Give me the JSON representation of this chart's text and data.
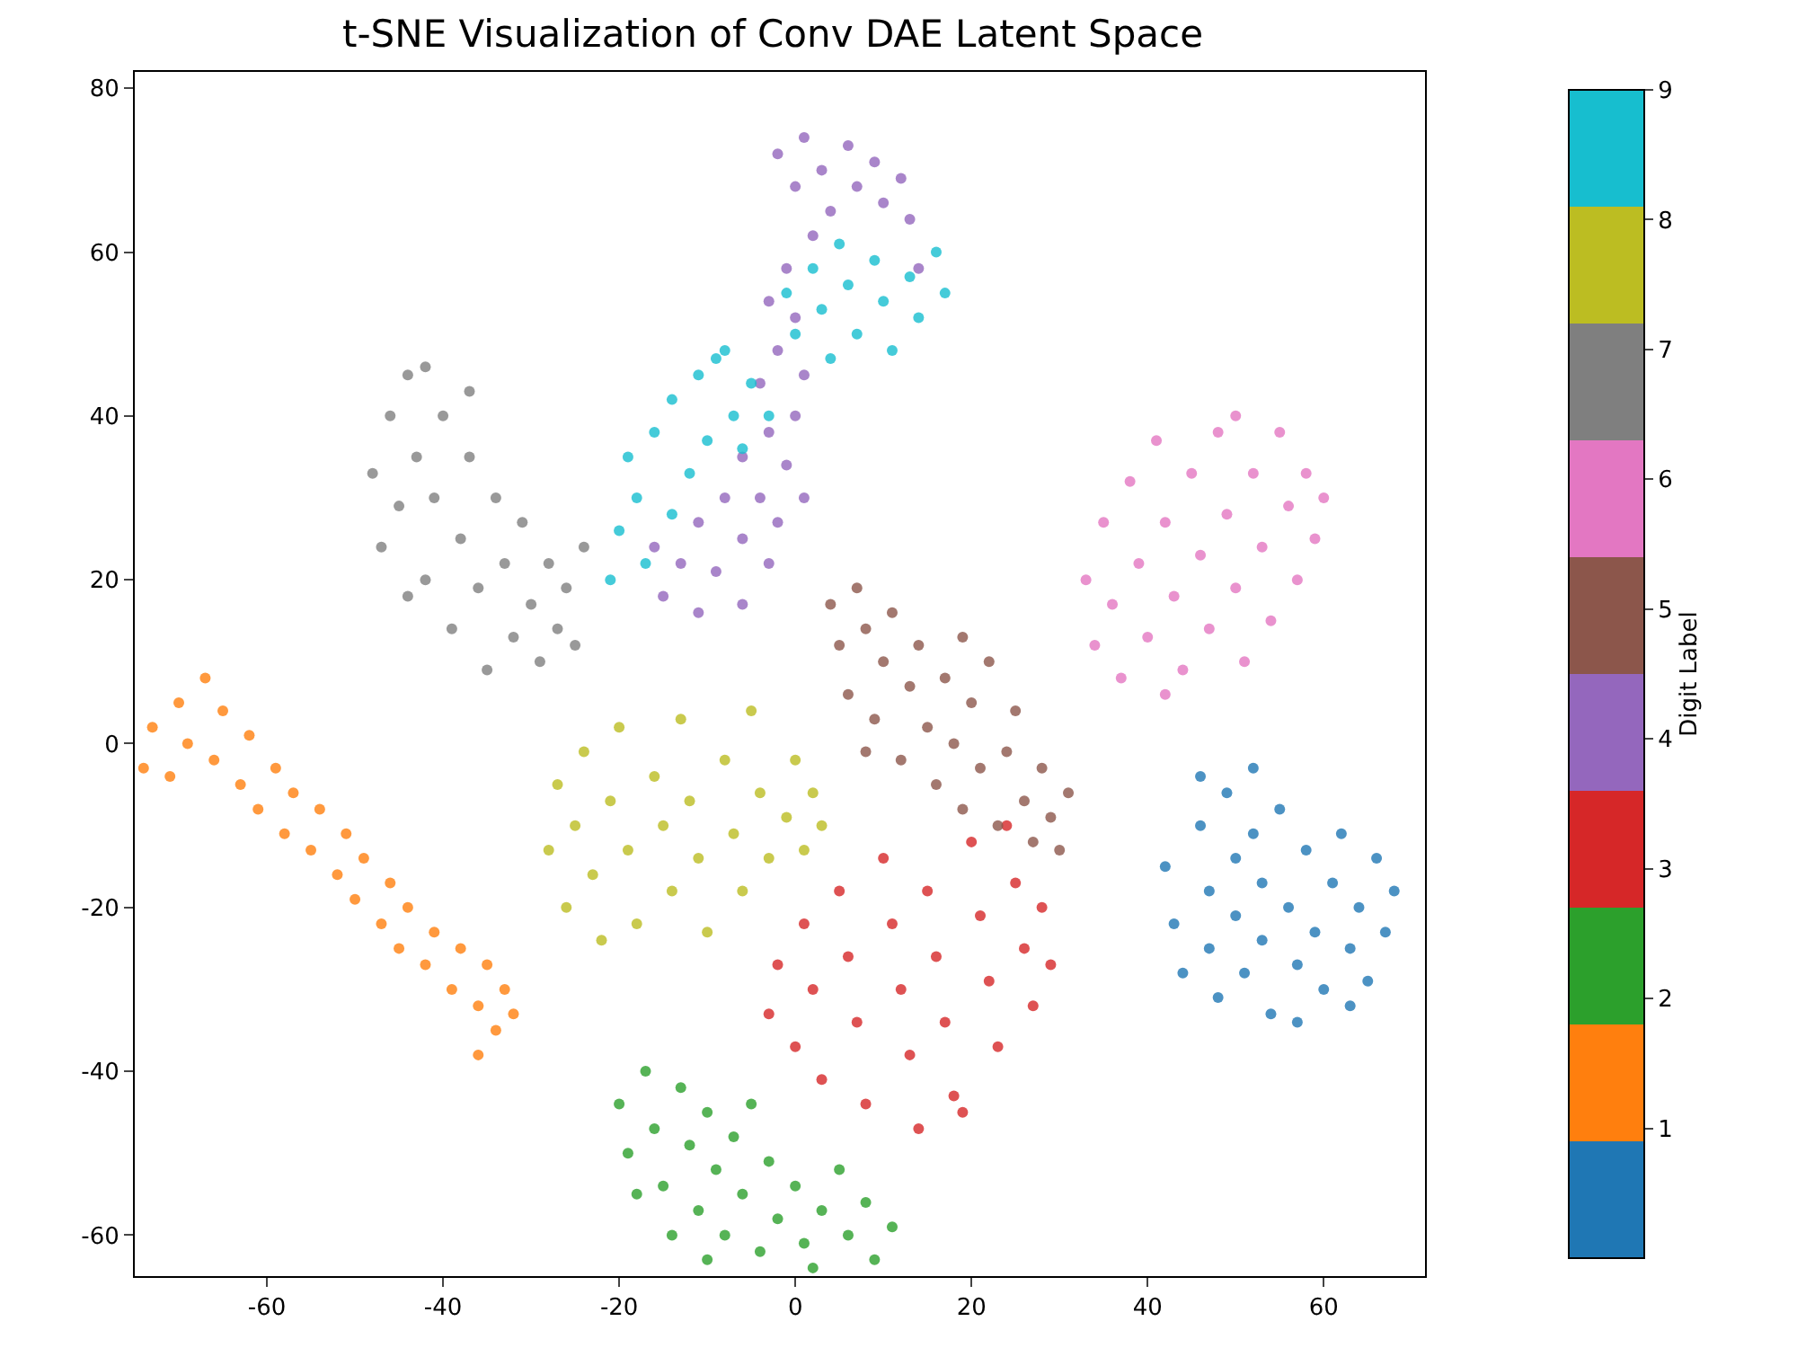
{
  "chart_data": {
    "type": "scatter",
    "title": "t-SNE Visualization of Conv DAE Latent Space",
    "clabel": "Digit Label",
    "clim": [
      0,
      9
    ],
    "cticks": [
      1,
      2,
      3,
      4,
      5,
      6,
      7,
      8,
      9
    ],
    "xlim": [
      -75,
      71.5
    ],
    "xticks": [
      -60,
      -40,
      -20,
      0,
      20,
      40,
      60
    ],
    "ylim": [
      -65,
      82
    ],
    "yticks": [
      -60,
      -40,
      -20,
      0,
      20,
      40,
      60,
      80
    ],
    "marker": "circle",
    "series": [
      {
        "color": "#1f77b4",
        "x": [
          42,
          43,
          44,
          46,
          47,
          47,
          48,
          49,
          50,
          50,
          51,
          52,
          53,
          53,
          54,
          55,
          56,
          57,
          58,
          59,
          60,
          61,
          62,
          63,
          64,
          65,
          66,
          67,
          68,
          63,
          57,
          46,
          52
        ],
        "values": [
          -15,
          -22,
          -28,
          -10,
          -18,
          -25,
          -31,
          -6,
          -14,
          -21,
          -28,
          -11,
          -17,
          -24,
          -33,
          -8,
          -20,
          -27,
          -13,
          -23,
          -30,
          -17,
          -11,
          -25,
          -20,
          -29,
          -14,
          -23,
          -18,
          -32,
          -34,
          -4,
          -3
        ]
      },
      {
        "color": "#ff7f0e",
        "x": [
          -74,
          -73,
          -71,
          -70,
          -69,
          -67,
          -66,
          -65,
          -63,
          -62,
          -61,
          -59,
          -58,
          -57,
          -55,
          -54,
          -52,
          -51,
          -50,
          -49,
          -47,
          -46,
          -45,
          -44,
          -42,
          -41,
          -39,
          -38,
          -36,
          -35,
          -34,
          -33,
          -32,
          -36
        ],
        "values": [
          -3,
          2,
          -4,
          5,
          0,
          8,
          -2,
          4,
          -5,
          1,
          -8,
          -3,
          -11,
          -6,
          -13,
          -8,
          -16,
          -11,
          -19,
          -14,
          -22,
          -17,
          -25,
          -20,
          -27,
          -23,
          -30,
          -25,
          -32,
          -27,
          -35,
          -30,
          -33,
          -38
        ]
      },
      {
        "color": "#2ca02c",
        "x": [
          -20,
          -19,
          -17,
          -16,
          -15,
          -13,
          -12,
          -11,
          -10,
          -9,
          -8,
          -7,
          -6,
          -4,
          -3,
          -2,
          0,
          1,
          2,
          3,
          5,
          6,
          8,
          9,
          11,
          -18,
          -14,
          -10,
          -5
        ],
        "values": [
          -44,
          -50,
          -40,
          -47,
          -54,
          -42,
          -49,
          -57,
          -45,
          -52,
          -60,
          -48,
          -55,
          -62,
          -51,
          -58,
          -54,
          -61,
          -64,
          -57,
          -52,
          -60,
          -56,
          -63,
          -59,
          -55,
          -60,
          -63,
          -44
        ]
      },
      {
        "color": "#d62728",
        "x": [
          -3,
          -2,
          0,
          1,
          2,
          3,
          5,
          6,
          7,
          8,
          10,
          11,
          12,
          13,
          14,
          15,
          16,
          17,
          18,
          20,
          21,
          22,
          23,
          25,
          26,
          27,
          28,
          29,
          24,
          19
        ],
        "values": [
          -33,
          -27,
          -37,
          -22,
          -30,
          -41,
          -18,
          -26,
          -34,
          -44,
          -14,
          -22,
          -30,
          -38,
          -47,
          -18,
          -26,
          -34,
          -43,
          -12,
          -21,
          -29,
          -37,
          -17,
          -25,
          -32,
          -20,
          -27,
          -10,
          -45
        ]
      },
      {
        "color": "#9467bd",
        "x": [
          -2,
          0,
          1,
          3,
          4,
          6,
          7,
          9,
          10,
          12,
          13,
          2,
          -1,
          -3,
          0,
          -2,
          1,
          -4,
          0,
          -3,
          -6,
          -1,
          -4,
          -8,
          -2,
          -11,
          -6,
          -13,
          -9,
          -3,
          -15,
          -11,
          -6,
          -16,
          1,
          14
        ],
        "values": [
          72,
          68,
          74,
          70,
          65,
          73,
          68,
          71,
          66,
          69,
          64,
          62,
          58,
          54,
          52,
          48,
          45,
          44,
          40,
          38,
          35,
          34,
          30,
          30,
          27,
          27,
          25,
          22,
          21,
          22,
          18,
          16,
          17,
          24,
          30,
          58
        ]
      },
      {
        "color": "#8c564b",
        "x": [
          4,
          5,
          6,
          7,
          8,
          9,
          10,
          11,
          12,
          13,
          14,
          15,
          16,
          17,
          18,
          19,
          20,
          21,
          22,
          23,
          24,
          25,
          26,
          27,
          28,
          29,
          30,
          31,
          19,
          8
        ],
        "values": [
          17,
          12,
          6,
          19,
          14,
          3,
          10,
          16,
          -2,
          7,
          12,
          2,
          -5,
          8,
          0,
          -8,
          5,
          -3,
          10,
          -10,
          -1,
          4,
          -7,
          -12,
          -3,
          -9,
          -13,
          -6,
          13,
          -1
        ]
      },
      {
        "color": "#e377c2",
        "x": [
          33,
          34,
          35,
          36,
          37,
          38,
          39,
          40,
          41,
          42,
          43,
          44,
          45,
          46,
          47,
          48,
          49,
          50,
          51,
          52,
          53,
          54,
          55,
          56,
          57,
          58,
          59,
          60,
          50,
          42
        ],
        "values": [
          20,
          12,
          27,
          17,
          8,
          32,
          22,
          13,
          37,
          27,
          18,
          9,
          33,
          23,
          14,
          38,
          28,
          19,
          10,
          33,
          24,
          15,
          38,
          29,
          20,
          33,
          25,
          30,
          40,
          6
        ]
      },
      {
        "color": "#7f7f7f",
        "x": [
          -48,
          -47,
          -46,
          -45,
          -44,
          -43,
          -42,
          -41,
          -40,
          -39,
          -38,
          -37,
          -36,
          -35,
          -34,
          -33,
          -32,
          -31,
          -30,
          -29,
          -28,
          -27,
          -26,
          -25,
          -42,
          -37,
          -44,
          -24
        ],
        "values": [
          33,
          24,
          40,
          29,
          45,
          35,
          20,
          30,
          40,
          14,
          25,
          35,
          19,
          9,
          30,
          22,
          13,
          27,
          17,
          10,
          22,
          14,
          19,
          12,
          46,
          43,
          18,
          24
        ]
      },
      {
        "color": "#bcbd22",
        "x": [
          -28,
          -27,
          -26,
          -25,
          -24,
          -23,
          -21,
          -20,
          -19,
          -18,
          -16,
          -15,
          -14,
          -13,
          -12,
          -11,
          -10,
          -8,
          -7,
          -6,
          -5,
          -4,
          -3,
          -1,
          0,
          1,
          2,
          3,
          -22
        ],
        "values": [
          -13,
          -5,
          -20,
          -10,
          -1,
          -16,
          -7,
          2,
          -13,
          -22,
          -4,
          -10,
          -18,
          3,
          -7,
          -14,
          -23,
          -2,
          -11,
          -18,
          4,
          -6,
          -14,
          -9,
          -2,
          -13,
          -6,
          -10,
          -24
        ]
      },
      {
        "color": "#17becf",
        "x": [
          -1,
          0,
          2,
          3,
          5,
          6,
          7,
          9,
          10,
          11,
          13,
          14,
          16,
          17,
          4,
          -8,
          -5,
          -11,
          -7,
          -14,
          -3,
          -10,
          -16,
          -6,
          -12,
          -18,
          -14,
          -20,
          -17,
          -21,
          -9,
          -19
        ],
        "values": [
          55,
          50,
          58,
          53,
          61,
          56,
          50,
          59,
          54,
          48,
          57,
          52,
          60,
          55,
          47,
          48,
          44,
          45,
          40,
          42,
          40,
          37,
          38,
          36,
          33,
          30,
          28,
          26,
          22,
          20,
          47,
          35
        ]
      }
    ]
  }
}
